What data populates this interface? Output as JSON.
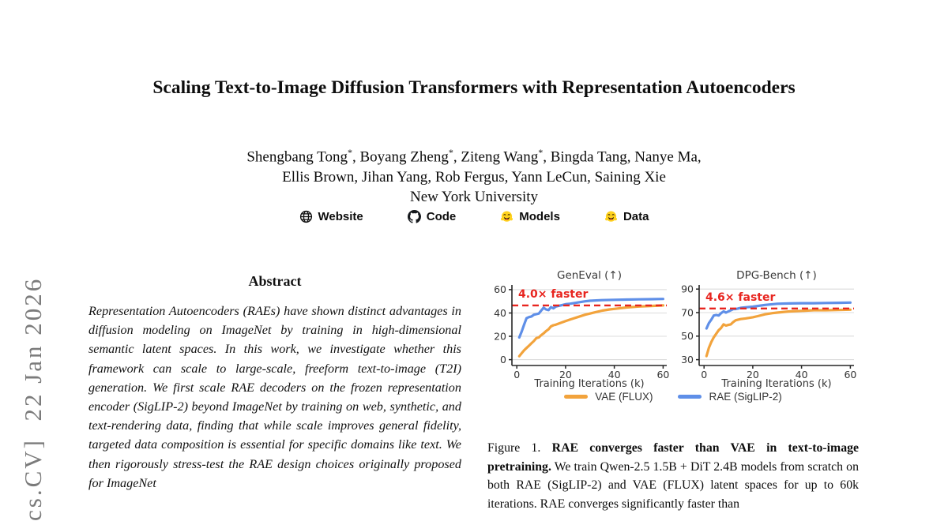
{
  "arxiv_stamp": "cs.CV]  22 Jan 2026",
  "header": {
    "title": "Scaling Text-to-Image Diffusion Transformers with Representation Autoencoders",
    "affiliation": "New York University",
    "authors_line1": [
      {
        "name": "Shengbang Tong",
        "mark": "*"
      },
      {
        "name": "Boyang Zheng",
        "mark": "*"
      },
      {
        "name": "Ziteng Wang",
        "mark": "*"
      },
      {
        "name": "Bingda Tang",
        "mark": ""
      },
      {
        "name": "Nanye Ma",
        "mark": ""
      }
    ],
    "authors_line2": [
      {
        "name": "Ellis Brown",
        "mark": ""
      },
      {
        "name": "Jihan Yang",
        "mark": ""
      },
      {
        "name": "Rob Fergus",
        "mark": ""
      },
      {
        "name": "Yann LeCun",
        "mark": ""
      },
      {
        "name": "Saining Xie",
        "mark": ""
      }
    ],
    "links": [
      {
        "label": "Website",
        "icon": "globe-icon"
      },
      {
        "label": "Code",
        "icon": "github-icon"
      },
      {
        "label": "Models",
        "icon": "huggingface-icon"
      },
      {
        "label": "Data",
        "icon": "huggingface-icon"
      }
    ]
  },
  "abstract": {
    "heading": "Abstract",
    "text": "Representation Autoencoders (RAEs) have shown distinct advantages in diffusion modeling on ImageNet by training in high-dimensional semantic latent spaces. In this work, we investigate whether this framework can scale to large-scale, freeform text-to-image (T2I) generation. We first scale RAE decoders on the frozen representation encoder (SigLIP-2) beyond ImageNet by training on web, synthetic, and text-rendering data, finding that while scale improves general fidelity, targeted data composition is essential for specific domains like text. We then rigorously stress-test the RAE design choices originally proposed for ImageNet"
  },
  "figure": {
    "caption_prefix": "Figure 1.",
    "caption_bold": "RAE converges faster than VAE in text-to-image pretraining.",
    "caption_rest": "We train Qwen-2.5 1.5B + DiT 2.4B models from scratch on both RAE (SigLIP-2) and VAE (FLUX) latent spaces for up to 60k iterations. RAE converges significantly faster than"
  },
  "legend": [
    {
      "label": "VAE (FLUX)",
      "color": "#F2A33C"
    },
    {
      "label": "RAE (SigLIP-2)",
      "color": "#5F8FE8"
    }
  ],
  "colors": {
    "annotation_red": "#E8251F",
    "grid": "#DCDCDC",
    "axis": "#262626",
    "stamp_gray": "#7B7B7B"
  },
  "chart_data": [
    {
      "id": "geneval",
      "type": "line",
      "title": "GenEval (↑)",
      "xlabel": "Training Iterations (k)",
      "xticks": [
        0,
        20,
        40,
        60
      ],
      "yticks": [
        0,
        20,
        40,
        60
      ],
      "xlim": [
        -2,
        61.5
      ],
      "ylim": [
        -5,
        64
      ],
      "grid": true,
      "dashed_y": 46.5,
      "annotation": "4.0× faster",
      "series": [
        {
          "name": "VAE (FLUX)",
          "color": "#F2A33C",
          "x": [
            1,
            2,
            3,
            4,
            5,
            6,
            7,
            8,
            9,
            10,
            11,
            12,
            13,
            14,
            15,
            16,
            18,
            20,
            22,
            25,
            28,
            30,
            32,
            35,
            38,
            40,
            45,
            50,
            55,
            60
          ],
          "y": [
            3,
            5.5,
            8,
            10,
            12,
            14,
            16,
            18.5,
            19,
            21,
            22.5,
            24.5,
            26,
            28.5,
            29.5,
            30,
            31.5,
            33,
            34.5,
            36.5,
            38.5,
            39.5,
            40.5,
            42,
            43,
            43.5,
            44.7,
            45.5,
            46,
            46.5
          ]
        },
        {
          "name": "RAE (SigLIP-2)",
          "color": "#5F8FE8",
          "x": [
            1,
            2,
            3,
            4,
            5,
            6,
            7,
            8,
            9,
            10,
            11,
            12,
            13,
            14,
            15,
            16,
            17,
            18,
            20,
            22,
            25,
            28,
            30,
            35,
            40,
            45,
            50,
            55,
            60
          ],
          "y": [
            19,
            24,
            30,
            35.5,
            36.5,
            37,
            38.5,
            39,
            39.5,
            42,
            44.5,
            43,
            42.5,
            45,
            44,
            45.5,
            46,
            46.5,
            47.5,
            48,
            49,
            50,
            50.5,
            51,
            51.3,
            51.5,
            51.7,
            51.8,
            52
          ]
        }
      ]
    },
    {
      "id": "dpg-bench",
      "type": "line",
      "title": "DPG-Bench (↑)",
      "xlabel": "Training Iterations (k)",
      "xticks": [
        0,
        20,
        40,
        60
      ],
      "yticks": [
        30,
        50,
        70,
        90
      ],
      "xlim": [
        -2,
        61.5
      ],
      "ylim": [
        25,
        93.5
      ],
      "grid": true,
      "dashed_y": 73.5,
      "annotation": "4.6× faster",
      "series": [
        {
          "name": "VAE (FLUX)",
          "color": "#F2A33C",
          "x": [
            1,
            2,
            3,
            4,
            5,
            6,
            7,
            8,
            9,
            10,
            11,
            12,
            13,
            14,
            15,
            17,
            20,
            22,
            25,
            28,
            30,
            35,
            40,
            45,
            50,
            55,
            60
          ],
          "y": [
            33,
            40,
            45,
            49,
            52,
            55,
            57,
            60,
            59,
            59.5,
            60,
            62,
            63.5,
            64,
            64.5,
            65,
            66,
            67,
            68.5,
            69.5,
            70,
            71,
            71.5,
            72,
            72,
            72.2,
            72.5
          ]
        },
        {
          "name": "RAE (SigLIP-2)",
          "color": "#5F8FE8",
          "x": [
            1,
            2,
            3,
            4,
            5,
            6,
            7,
            8,
            9,
            10,
            11,
            12,
            13,
            14,
            15,
            17,
            20,
            25,
            30,
            35,
            40,
            45,
            50,
            55,
            60
          ],
          "y": [
            56.5,
            61,
            64,
            67.5,
            68,
            67.5,
            69.5,
            71,
            70,
            71,
            72,
            73,
            73,
            73.5,
            74,
            74.5,
            75,
            76.5,
            77.5,
            77.8,
            78,
            78,
            78.2,
            78.3,
            78.5
          ]
        }
      ]
    }
  ]
}
